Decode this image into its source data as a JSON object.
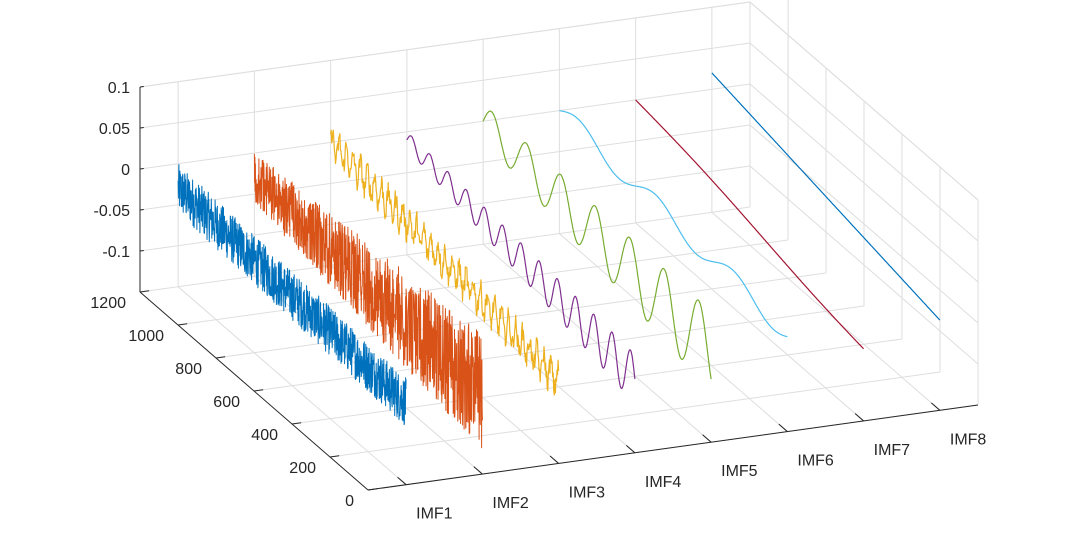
{
  "chart_data": {
    "type": "line",
    "projection": "3d-waterfall",
    "title": "",
    "xlabel": "",
    "ylabel": "",
    "zlabel": "",
    "categories": [
      "IMF1",
      "IMF2",
      "IMF3",
      "IMF4",
      "IMF5",
      "IMF6",
      "IMF7",
      "IMF8"
    ],
    "sample_axis": {
      "range": [
        0,
        1200
      ],
      "ticks": [
        0,
        200,
        400,
        600,
        800,
        1000,
        1200
      ]
    },
    "value_axis": {
      "range": [
        -0.15,
        0.1
      ],
      "ticks": [
        0.1,
        0.05,
        0,
        -0.05,
        -0.1
      ],
      "tick_labels": [
        "0.1",
        "0.05",
        "0",
        "-0.05",
        "-0.1"
      ]
    },
    "grid": true,
    "legend": "none",
    "series": [
      {
        "category": "IMF1",
        "color": "#0072BD",
        "samples": [
          0,
          1200
        ],
        "oscillation": "very high frequency noise",
        "amplitude": 0.03,
        "trend": [
          -0.03,
          -0.05
        ]
      },
      {
        "category": "IMF2",
        "color": "#D95319",
        "samples": [
          0,
          1200
        ],
        "oscillation": "high frequency, growing amplitude",
        "amplitude": 0.045,
        "trend": [
          -0.03,
          -0.05
        ]
      },
      {
        "category": "IMF3",
        "color": "#EDB120",
        "samples": [
          0,
          1200
        ],
        "oscillation": "medium-high frequency",
        "amplitude": 0.015,
        "trend": [
          0.0,
          -0.05
        ]
      },
      {
        "category": "IMF4",
        "color": "#7E2F8E",
        "samples": [
          0,
          1200
        ],
        "oscillation": "medium frequency",
        "amplitude": 0.02,
        "trend": [
          -0.01,
          -0.06
        ]
      },
      {
        "category": "IMF5",
        "color": "#77AC30",
        "samples": [
          0,
          1200
        ],
        "oscillation": "low frequency",
        "amplitude": 0.035,
        "trend": [
          0.0,
          -0.04
        ]
      },
      {
        "category": "IMF6",
        "color": "#4DBEEE",
        "samples": [
          0,
          1200
        ],
        "oscillation": "very low frequency",
        "amplitude": 0.012,
        "trend": [
          0.0,
          -0.03
        ]
      },
      {
        "category": "IMF7",
        "color": "#A2142F",
        "samples": [
          0,
          1200
        ],
        "oscillation": "smooth",
        "amplitude": 0.003,
        "trend": [
          0.0,
          -0.06
        ]
      },
      {
        "category": "IMF8",
        "color": "#0072BD",
        "samples": [
          0,
          1200
        ],
        "oscillation": "monotonic trend",
        "amplitude": 0.0,
        "trend": [
          0.02,
          -0.04
        ]
      }
    ]
  }
}
